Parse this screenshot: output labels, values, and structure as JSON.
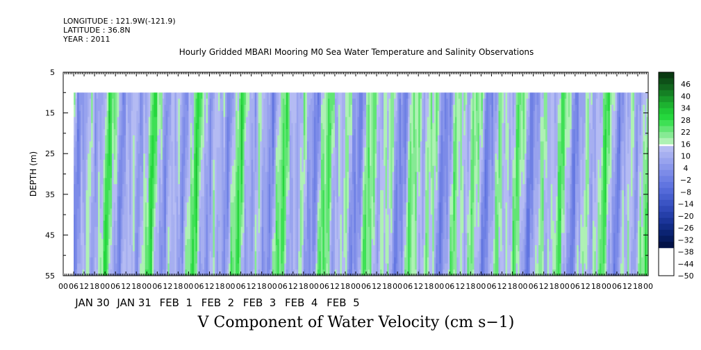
{
  "header": {
    "longitude": "LONGITUDE : 121.9W(-121.9)",
    "latitude": "LATITUDE : 36.8N",
    "year": "YEAR : 2011"
  },
  "chart_data": {
    "type": "heatmap",
    "title": "Hourly Gridded MBARI Mooring M0 Sea Water Temperature and Salinity Observations",
    "xlabel": "V Component of Water Velocity (cm s−1)",
    "ylabel": "DEPTH (m)",
    "ylim": [
      5,
      55
    ],
    "y_inverted": true,
    "y_ticks": [
      5,
      15,
      25,
      35,
      45,
      55
    ],
    "hour_tick_labels": [
      "00",
      "06",
      "12",
      "18",
      "00",
      "06",
      "12",
      "18",
      "00",
      "06",
      "12",
      "18",
      "00",
      "06",
      "12",
      "18",
      "00",
      "06",
      "12",
      "18",
      "00",
      "06",
      "12",
      "18",
      "00",
      "06",
      "12",
      "18",
      "00",
      "06",
      "12",
      "18",
      "00",
      "06",
      "12",
      "18",
      "00",
      "06",
      "12",
      "18",
      "00",
      "06",
      "12",
      "18",
      "00",
      "06",
      "12",
      "18",
      "00",
      "06",
      "12",
      "18",
      "00",
      "06",
      "12",
      "18",
      "00"
    ],
    "day_labels": [
      "JAN 30",
      "JAN 31",
      "FEB  1",
      "FEB  2",
      "FEB  3",
      "FEB  4",
      "FEB  5"
    ],
    "data_depth_range": [
      10,
      55
    ],
    "data_start_hour": 6,
    "colorbar": {
      "labels": [
        "46",
        "40",
        "34",
        "28",
        "22",
        "16",
        "10",
        "4",
        "−2",
        "−8",
        "−14",
        "−20",
        "−26",
        "−32",
        "−38",
        "−44",
        "−50"
      ],
      "range": [
        -50,
        52
      ],
      "step": 3,
      "colors_high": [
        "#0a3a12",
        "#0e5018",
        "#12661e",
        "#158024",
        "#199a2a",
        "#1db230",
        "#20c836",
        "#25d73d",
        "#3ee055",
        "#62e574",
        "#86ea94",
        "#aef1b4"
      ],
      "colors_low": [
        "#b4bbf3",
        "#a6aff0",
        "#98a3ee",
        "#8a97eb",
        "#7c8be8",
        "#6e80e4",
        "#6175e0",
        "#546ad9",
        "#475fcf",
        "#3b54c4",
        "#3049b8",
        "#253fa9",
        "#1b3599",
        "#122c86",
        "#0b2372",
        "#061b5e",
        "#021248"
      ]
    }
  }
}
